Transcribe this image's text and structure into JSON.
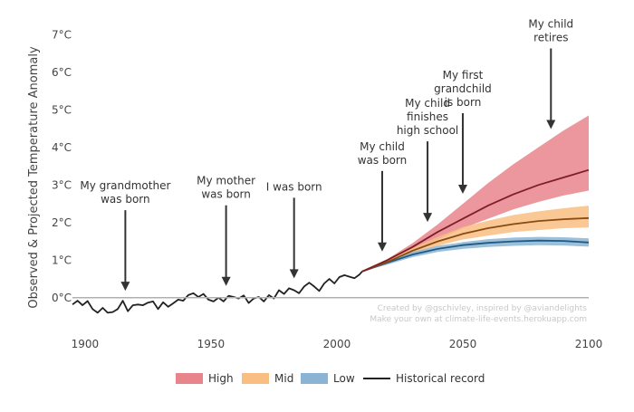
{
  "chart_data": {
    "type": "line",
    "title": "",
    "xlabel": "",
    "ylabel": "Observed & Projected Temperature Anomaly",
    "xlim": [
      1895,
      2100
    ],
    "ylim": [
      -0.8,
      7.2
    ],
    "x_ticks": [
      "1900",
      "1950",
      "2000",
      "2050",
      "2100"
    ],
    "y_ticks": [
      "0°C",
      "1°C",
      "2°C",
      "3°C",
      "4°C",
      "5°C",
      "6°C",
      "7°C"
    ],
    "grid": false,
    "legend_position": "bottom",
    "colors": {
      "high_band": "#e8858c",
      "high_line": "#7d1f24",
      "mid_band": "#f8be82",
      "mid_line": "#8a4a12",
      "low_band": "#8bb4d4",
      "low_line": "#1f5a85",
      "historical": "#222222",
      "zero_line": "#b0b0b0",
      "annotation": "#333333",
      "credit": "#c8c8c8"
    },
    "series": [
      {
        "name": "Historical record",
        "x": [
          1895,
          1897,
          1899,
          1901,
          1903,
          1905,
          1907,
          1909,
          1911,
          1913,
          1915,
          1917,
          1919,
          1921,
          1923,
          1925,
          1927,
          1929,
          1931,
          1933,
          1935,
          1937,
          1939,
          1941,
          1943,
          1945,
          1947,
          1949,
          1951,
          1953,
          1955,
          1957,
          1959,
          1961,
          1963,
          1965,
          1967,
          1969,
          1971,
          1973,
          1975,
          1977,
          1979,
          1981,
          1983,
          1985,
          1987,
          1989,
          1991,
          1993,
          1995,
          1997,
          1999,
          2001,
          2003,
          2005,
          2007,
          2009,
          2010
        ],
        "values": [
          -0.18,
          -0.08,
          -0.2,
          -0.09,
          -0.3,
          -0.4,
          -0.27,
          -0.4,
          -0.38,
          -0.3,
          -0.08,
          -0.36,
          -0.2,
          -0.18,
          -0.2,
          -0.13,
          -0.1,
          -0.3,
          -0.12,
          -0.24,
          -0.15,
          -0.05,
          -0.08,
          0.07,
          0.12,
          0.02,
          0.1,
          -0.05,
          -0.1,
          0.0,
          -0.1,
          0.05,
          0.02,
          -0.02,
          0.06,
          -0.14,
          -0.02,
          0.02,
          -0.1,
          0.07,
          -0.02,
          0.2,
          0.1,
          0.25,
          0.2,
          0.12,
          0.3,
          0.4,
          0.3,
          0.18,
          0.38,
          0.5,
          0.38,
          0.55,
          0.6,
          0.56,
          0.52,
          0.62,
          0.7
        ]
      },
      {
        "name": "High",
        "x": [
          2010,
          2020,
          2030,
          2040,
          2050,
          2060,
          2070,
          2080,
          2090,
          2100
        ],
        "values": [
          0.7,
          1.0,
          1.35,
          1.75,
          2.1,
          2.45,
          2.75,
          3.0,
          3.2,
          3.4
        ],
        "lower": [
          0.7,
          0.95,
          1.25,
          1.55,
          1.85,
          2.1,
          2.35,
          2.55,
          2.72,
          2.85
        ],
        "upper": [
          0.7,
          1.03,
          1.45,
          1.95,
          2.5,
          3.05,
          3.55,
          4.0,
          4.45,
          4.85
        ]
      },
      {
        "name": "Mid",
        "x": [
          2010,
          2020,
          2030,
          2040,
          2050,
          2060,
          2070,
          2080,
          2090,
          2100
        ],
        "values": [
          0.7,
          0.95,
          1.25,
          1.5,
          1.7,
          1.85,
          1.96,
          2.04,
          2.09,
          2.12
        ],
        "lower": [
          0.7,
          0.92,
          1.18,
          1.38,
          1.55,
          1.65,
          1.75,
          1.8,
          1.85,
          1.87
        ],
        "upper": [
          0.7,
          1.0,
          1.32,
          1.62,
          1.88,
          2.05,
          2.2,
          2.3,
          2.38,
          2.45
        ]
      },
      {
        "name": "Low",
        "x": [
          2010,
          2020,
          2030,
          2040,
          2050,
          2060,
          2070,
          2080,
          2090,
          2100
        ],
        "values": [
          0.7,
          0.93,
          1.15,
          1.3,
          1.4,
          1.46,
          1.5,
          1.52,
          1.51,
          1.47
        ],
        "lower": [
          0.7,
          0.88,
          1.08,
          1.22,
          1.3,
          1.35,
          1.38,
          1.4,
          1.39,
          1.36
        ],
        "upper": [
          0.7,
          0.97,
          1.22,
          1.38,
          1.48,
          1.56,
          1.6,
          1.62,
          1.61,
          1.58
        ]
      }
    ],
    "annotations": [
      {
        "text": [
          "My grandmother",
          "was born"
        ],
        "year": 1916
      },
      {
        "text": [
          "My mother",
          "was born"
        ],
        "year": 1956
      },
      {
        "text": [
          "I was born"
        ],
        "year": 1983
      },
      {
        "text": [
          "My child",
          "was born"
        ],
        "year": 2018
      },
      {
        "text": [
          "My child",
          "finishes",
          "high school"
        ],
        "year": 2036
      },
      {
        "text": [
          "My first",
          "grandchild",
          "is born"
        ],
        "year": 2050
      },
      {
        "text": [
          "My child",
          "retires"
        ],
        "year": 2085
      }
    ],
    "credits": [
      "Created by @gschivley, inspired by @aviandelights",
      "Make your own at climate-life-events.herokuapp.com"
    ],
    "legend": [
      {
        "label": "High",
        "kind": "band",
        "key": "high"
      },
      {
        "label": "Mid",
        "kind": "band",
        "key": "mid"
      },
      {
        "label": "Low",
        "kind": "band",
        "key": "low"
      },
      {
        "label": "Historical record",
        "kind": "line",
        "key": "historical"
      }
    ]
  }
}
